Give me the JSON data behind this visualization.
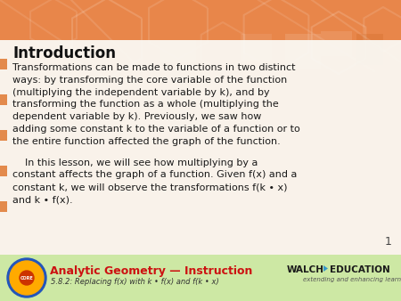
{
  "title": "Introduction",
  "p1_lines": [
    "Transformations can be made to functions in two distinct",
    "ways: by transforming the core variable of the function",
    "(multiplying the independent variable by k), and by",
    "transforming the function as a whole (multiplying the",
    "dependent variable by k). Previously, we saw how",
    "adding some constant k to the variable of a function or to",
    "the entire function affected the graph of the function."
  ],
  "p2_lines": [
    "    In this lesson, we will see how multiplying by a",
    "constant affects the graph of a function. Given f(x) and a",
    "constant k, we will observe the transformations f(k • x)",
    "and k • f(x)."
  ],
  "footer_title": "Analytic Geometry — Instruction",
  "footer_subtitle": "5.8.2: Replacing f(x) with k • f(x) and f(k • x)",
  "page_number": "1",
  "orange_bg": "#e8864a",
  "orange_dark": "#c96a28",
  "orange_mid": "#dd7a3a",
  "white_panel": "#faf9f4",
  "footer_bg": "#cde8a4",
  "footer_title_color": "#cc1111",
  "footer_sub_color": "#333333",
  "title_color": "#111111",
  "text_color": "#1a1a1a",
  "page_num_color": "#444444",
  "walch_color": "#1a1a1a",
  "walch_sub_color": "#555555"
}
